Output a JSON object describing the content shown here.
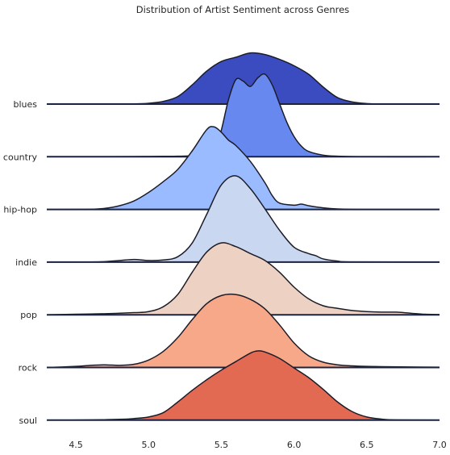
{
  "chart_data": {
    "type": "ridgeline",
    "title": "Distribution of Artist Sentiment across Genres",
    "xlabel": "",
    "ylabel": "",
    "xlim": [
      4.3,
      7.0
    ],
    "xticks": [
      "4.5",
      "5.0",
      "5.5",
      "6.0",
      "6.5",
      "7.0"
    ],
    "grid": false,
    "legend": "none",
    "series": [
      {
        "name": "blues",
        "color": "#3b4cc0",
        "points": [
          [
            4.3,
            0
          ],
          [
            4.6,
            0
          ],
          [
            4.9,
            0.004
          ],
          [
            5.0,
            0.015
          ],
          [
            5.1,
            0.05
          ],
          [
            5.2,
            0.14
          ],
          [
            5.3,
            0.36
          ],
          [
            5.4,
            0.62
          ],
          [
            5.5,
            0.8
          ],
          [
            5.6,
            0.88
          ],
          [
            5.7,
            0.96
          ],
          [
            5.8,
            0.93
          ],
          [
            5.9,
            0.84
          ],
          [
            6.0,
            0.72
          ],
          [
            6.1,
            0.56
          ],
          [
            6.2,
            0.32
          ],
          [
            6.3,
            0.12
          ],
          [
            6.4,
            0.04
          ],
          [
            6.5,
            0.01
          ],
          [
            6.6,
            0.002
          ],
          [
            7.0,
            0
          ]
        ]
      },
      {
        "name": "country",
        "color": "#6788ee",
        "points": [
          [
            4.3,
            0
          ],
          [
            4.7,
            0
          ],
          [
            4.9,
            0.003
          ],
          [
            5.0,
            0.005
          ],
          [
            5.1,
            0.008
          ],
          [
            5.2,
            0.01
          ],
          [
            5.3,
            0.02
          ],
          [
            5.4,
            0.06
          ],
          [
            5.46,
            0.18
          ],
          [
            5.5,
            0.5
          ],
          [
            5.55,
            1.08
          ],
          [
            5.6,
            1.45
          ],
          [
            5.65,
            1.42
          ],
          [
            5.7,
            1.32
          ],
          [
            5.75,
            1.48
          ],
          [
            5.8,
            1.55
          ],
          [
            5.85,
            1.35
          ],
          [
            5.9,
            1.0
          ],
          [
            5.95,
            0.65
          ],
          [
            6.0,
            0.38
          ],
          [
            6.05,
            0.2
          ],
          [
            6.1,
            0.1
          ],
          [
            6.2,
            0.03
          ],
          [
            6.3,
            0.01
          ],
          [
            6.5,
            0
          ],
          [
            7.0,
            0
          ]
        ]
      },
      {
        "name": "hip-hop",
        "color": "#9abbff",
        "points": [
          [
            4.3,
            0
          ],
          [
            4.6,
            0.003
          ],
          [
            4.7,
            0.02
          ],
          [
            4.8,
            0.07
          ],
          [
            4.9,
            0.16
          ],
          [
            5.0,
            0.32
          ],
          [
            5.1,
            0.52
          ],
          [
            5.2,
            0.75
          ],
          [
            5.3,
            1.1
          ],
          [
            5.4,
            1.5
          ],
          [
            5.45,
            1.55
          ],
          [
            5.5,
            1.45
          ],
          [
            5.55,
            1.3
          ],
          [
            5.6,
            1.2
          ],
          [
            5.7,
            0.9
          ],
          [
            5.8,
            0.5
          ],
          [
            5.85,
            0.26
          ],
          [
            5.9,
            0.12
          ],
          [
            6.0,
            0.08
          ],
          [
            6.05,
            0.1
          ],
          [
            6.1,
            0.07
          ],
          [
            6.2,
            0.03
          ],
          [
            6.3,
            0.01
          ],
          [
            6.5,
            0
          ],
          [
            7.0,
            0
          ]
        ]
      },
      {
        "name": "indie",
        "color": "#c9d7f0",
        "points": [
          [
            4.3,
            0
          ],
          [
            4.6,
            0.003
          ],
          [
            4.7,
            0.01
          ],
          [
            4.8,
            0.03
          ],
          [
            4.9,
            0.05
          ],
          [
            5.0,
            0.03
          ],
          [
            5.1,
            0.04
          ],
          [
            5.2,
            0.1
          ],
          [
            5.3,
            0.36
          ],
          [
            5.4,
            0.9
          ],
          [
            5.5,
            1.45
          ],
          [
            5.6,
            1.62
          ],
          [
            5.7,
            1.38
          ],
          [
            5.8,
            1.0
          ],
          [
            5.9,
            0.6
          ],
          [
            6.0,
            0.28
          ],
          [
            6.1,
            0.16
          ],
          [
            6.15,
            0.12
          ],
          [
            6.2,
            0.06
          ],
          [
            6.3,
            0.02
          ],
          [
            6.4,
            0.005
          ],
          [
            7.0,
            0
          ]
        ]
      },
      {
        "name": "pop",
        "color": "#edd1c2",
        "points": [
          [
            4.3,
            0
          ],
          [
            4.5,
            0.01
          ],
          [
            4.7,
            0.02
          ],
          [
            4.9,
            0.04
          ],
          [
            5.0,
            0.06
          ],
          [
            5.1,
            0.15
          ],
          [
            5.2,
            0.38
          ],
          [
            5.3,
            0.8
          ],
          [
            5.4,
            1.18
          ],
          [
            5.5,
            1.35
          ],
          [
            5.6,
            1.28
          ],
          [
            5.7,
            1.15
          ],
          [
            5.8,
            1.02
          ],
          [
            5.9,
            0.8
          ],
          [
            6.0,
            0.52
          ],
          [
            6.1,
            0.3
          ],
          [
            6.2,
            0.17
          ],
          [
            6.3,
            0.12
          ],
          [
            6.4,
            0.08
          ],
          [
            6.5,
            0.06
          ],
          [
            6.6,
            0.05
          ],
          [
            6.7,
            0.05
          ],
          [
            6.8,
            0.03
          ],
          [
            6.9,
            0.01
          ],
          [
            7.0,
            0.005
          ]
        ]
      },
      {
        "name": "rock",
        "color": "#f7a889",
        "points": [
          [
            4.3,
            0
          ],
          [
            4.5,
            0.02
          ],
          [
            4.6,
            0.04
          ],
          [
            4.7,
            0.05
          ],
          [
            4.8,
            0.04
          ],
          [
            4.9,
            0.06
          ],
          [
            5.0,
            0.14
          ],
          [
            5.1,
            0.3
          ],
          [
            5.2,
            0.56
          ],
          [
            5.3,
            0.9
          ],
          [
            5.4,
            1.2
          ],
          [
            5.5,
            1.35
          ],
          [
            5.6,
            1.37
          ],
          [
            5.7,
            1.28
          ],
          [
            5.8,
            1.1
          ],
          [
            5.9,
            0.8
          ],
          [
            6.0,
            0.46
          ],
          [
            6.1,
            0.22
          ],
          [
            6.2,
            0.1
          ],
          [
            6.3,
            0.05
          ],
          [
            6.4,
            0.03
          ],
          [
            6.5,
            0.02
          ],
          [
            6.6,
            0.015
          ],
          [
            6.8,
            0.01
          ],
          [
            7.0,
            0.005
          ]
        ]
      },
      {
        "name": "soul",
        "color": "#e26952",
        "points": [
          [
            4.3,
            0
          ],
          [
            4.6,
            0.004
          ],
          [
            4.8,
            0.015
          ],
          [
            4.9,
            0.03
          ],
          [
            5.0,
            0.06
          ],
          [
            5.1,
            0.14
          ],
          [
            5.2,
            0.34
          ],
          [
            5.3,
            0.56
          ],
          [
            5.4,
            0.76
          ],
          [
            5.5,
            0.94
          ],
          [
            5.6,
            1.1
          ],
          [
            5.7,
            1.26
          ],
          [
            5.75,
            1.3
          ],
          [
            5.8,
            1.28
          ],
          [
            5.9,
            1.16
          ],
          [
            6.0,
            0.98
          ],
          [
            6.1,
            0.8
          ],
          [
            6.2,
            0.58
          ],
          [
            6.3,
            0.34
          ],
          [
            6.4,
            0.16
          ],
          [
            6.5,
            0.06
          ],
          [
            6.6,
            0.02
          ],
          [
            6.7,
            0.005
          ],
          [
            7.0,
            0
          ]
        ]
      }
    ]
  }
}
